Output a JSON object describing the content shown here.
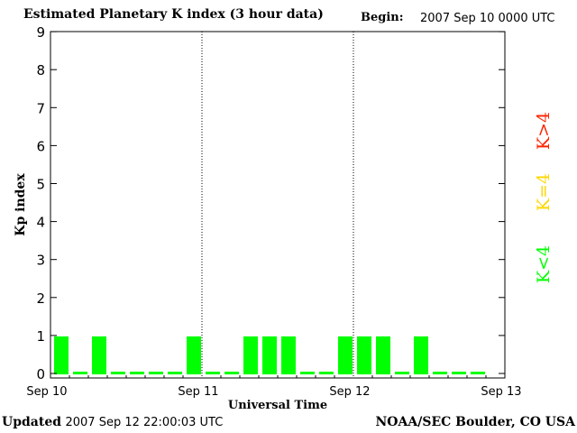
{
  "header": {
    "title": "Estimated Planetary K index (3 hour data)",
    "begin_label": "Begin:",
    "begin_value": "2007 Sep 10 0000 UTC"
  },
  "footer": {
    "updated_label": "Updated",
    "updated_value": "2007 Sep 12 22:00:03 UTC",
    "source": "NOAA/SEC Boulder, CO USA"
  },
  "legend": [
    {
      "label": "K<4",
      "color": "#00ff00"
    },
    {
      "label": "K=4",
      "color": "#ffd700"
    },
    {
      "label": "K>4",
      "color": "#ff2200"
    }
  ],
  "chart_data": {
    "type": "bar",
    "title": "Estimated Planetary K index (3 hour data)",
    "xlabel": "Universal Time",
    "ylabel": "Kp index",
    "ylim": [
      0,
      9
    ],
    "yticks": [
      "0",
      "1",
      "2",
      "3",
      "4",
      "5",
      "6",
      "7",
      "8",
      "9"
    ],
    "x_ticks": [
      "Sep 10",
      "Sep 11",
      "Sep 12",
      "Sep 13"
    ],
    "day_separators": [
      "Sep 11",
      "Sep 12"
    ],
    "grid": false,
    "interval_hours": 3,
    "values": [
      1,
      0,
      1,
      0,
      0,
      0,
      0,
      1,
      0,
      0,
      1,
      1,
      1,
      0,
      0,
      1,
      1,
      1,
      0,
      1,
      0,
      0,
      0
    ],
    "bar_color": "#00ff00"
  }
}
